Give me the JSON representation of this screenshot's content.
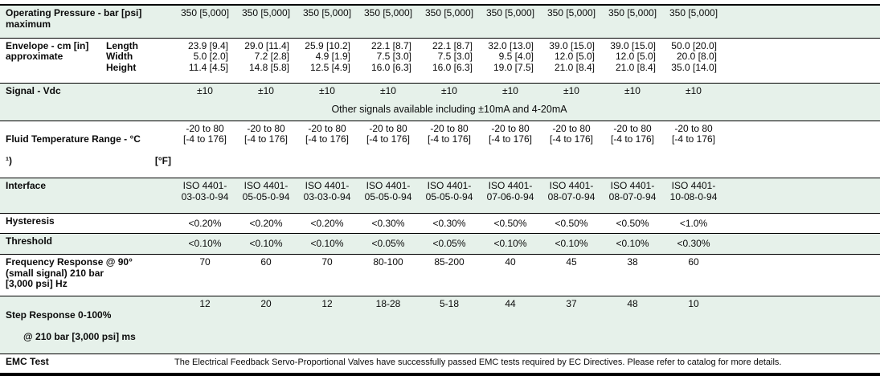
{
  "table": {
    "colors": {
      "band": "#e6f1ea",
      "line": "#000000"
    },
    "rows": {
      "operating_pressure": {
        "label": "Operating Pressure - bar [psi]\nmaximum",
        "values": [
          "350 [5,000]",
          "350 [5,000]",
          "350 [5,000]",
          "350 [5,000]",
          "350 [5,000]",
          "350 [5,000]",
          "350 [5,000]",
          "350 [5,000]",
          "350 [5,000]"
        ]
      },
      "envelope": {
        "label": "Envelope - cm [in]\napproximate",
        "sublabels": "Length\nWidth\nHeight",
        "values": [
          "23.9 [9.4]\n5.0 [2.0]\n11.4 [4.5]",
          "29.0 [11.4]\n7.2 [2.8]\n14.8 [5.8]",
          "25.9 [10.2]\n4.9 [1.9]\n12.5 [4.9]",
          "22.1 [8.7]\n7.5 [3.0]\n16.0 [6.3]",
          "22.1 [8.7]\n7.5 [3.0]\n16.0 [6.3]",
          "32.0 [13.0]\n9.5 [4.0]\n19.0 [7.5]",
          "39.0 [15.0]\n12.0 [5.0]\n21.0 [8.4]",
          "39.0 [15.0]\n12.0 [5.0]\n21.0 [8.4]",
          "50.0 [20.0]\n20.0 [8.0]\n35.0 [14.0]"
        ]
      },
      "signal": {
        "label": "Signal - Vdc",
        "values": [
          "±10",
          "±10",
          "±10",
          "±10",
          "±10",
          "±10",
          "±10",
          "±10",
          "±10"
        ],
        "note": "Other signals available including ±10mA and 4-20mA"
      },
      "fluid_temp": {
        "label": "Fluid Temperature Range - °C",
        "footnote": "¹)",
        "unit": "[°F]",
        "values": [
          "-20 to 80\n[-4 to 176]",
          "-20 to 80\n[-4 to 176]",
          "-20 to 80\n[-4 to 176]",
          "-20 to 80\n[-4 to 176]",
          "-20 to 80\n[-4 to 176]",
          "-20 to 80\n[-4 to 176]",
          "-20 to 80\n[-4 to 176]",
          "-20 to 80\n[-4 to 176]",
          "-20 to 80\n[-4 to 176]"
        ]
      },
      "interface": {
        "label": "Interface",
        "values": [
          "ISO 4401-\n03-03-0-94",
          "ISO 4401-\n05-05-0-94",
          "ISO 4401-\n03-03-0-94",
          "ISO 4401-\n05-05-0-94",
          "ISO 4401-\n05-05-0-94",
          "ISO 4401-\n07-06-0-94",
          "ISO 4401-\n08-07-0-94",
          "ISO 4401-\n08-07-0-94",
          "ISO 4401-\n10-08-0-94"
        ]
      },
      "hysteresis": {
        "label": "Hysteresis",
        "values": [
          "<0.20%",
          "<0.20%",
          "<0.20%",
          "<0.30%",
          "<0.30%",
          "<0.50%",
          "<0.50%",
          "<0.50%",
          "<1.0%"
        ]
      },
      "threshold": {
        "label": "Threshold",
        "values": [
          "<0.10%",
          "<0.10%",
          "<0.10%",
          "<0.05%",
          "<0.05%",
          "<0.10%",
          "<0.10%",
          "<0.10%",
          "<0.30%"
        ]
      },
      "frequency_response": {
        "label": "Frequency Response @ 90°\n(small signal) 210 bar\n[3,000 psi] Hz",
        "values": [
          "70",
          "60",
          "70",
          "80-100",
          "85-200",
          "40",
          "45",
          "38",
          "60"
        ]
      },
      "step_response": {
        "label": "Step Response 0-100%",
        "label2": "@ 210 bar [3,000 psi] ms",
        "values": [
          "12",
          "20",
          "12",
          "18-28",
          "5-18",
          "44",
          "37",
          "48",
          "10"
        ]
      },
      "emc_test": {
        "label": "EMC Test",
        "text": "The Electrical Feedback Servo-Proportional Valves have successfully passed EMC tests required by EC Directives. Please refer to catalog for more details."
      }
    }
  }
}
